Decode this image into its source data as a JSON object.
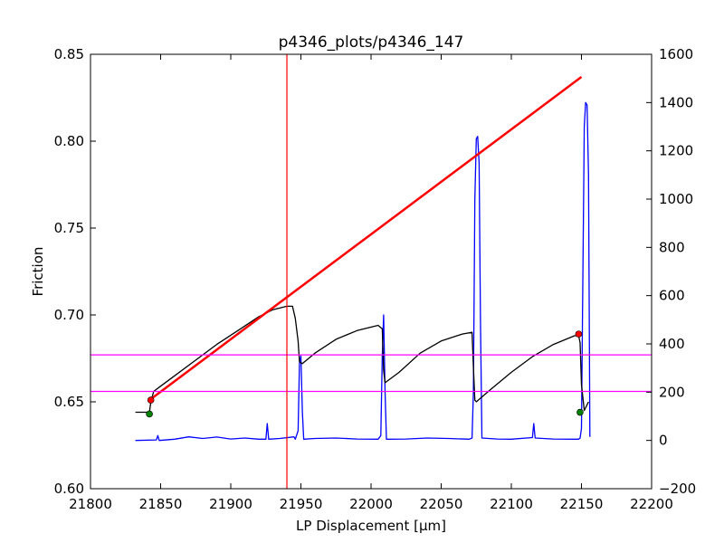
{
  "chart_data": {
    "type": "line",
    "title": "p4346_plots/p4346_147",
    "xlabel": "LP Displacement [μm]",
    "ylabel": "Friction",
    "xlim": [
      21800,
      22200
    ],
    "ylim_left": [
      0.6,
      0.85
    ],
    "ylim_right": [
      -200,
      1600
    ],
    "x_ticks": [
      "21800",
      "21850",
      "21900",
      "21950",
      "22000",
      "22050",
      "22100",
      "22150",
      "22200"
    ],
    "y_ticks_left": [
      "0.60",
      "0.65",
      "0.70",
      "0.75",
      "0.80",
      "0.85"
    ],
    "y_ticks_right": [
      "−200",
      "0",
      "200",
      "400",
      "600",
      "800",
      "1000",
      "1200",
      "1400",
      "1600"
    ],
    "grid": false,
    "series": [
      {
        "axis": "left",
        "color": "#000000",
        "points": [
          [
            21832,
            0.644
          ],
          [
            21842,
            0.644
          ],
          [
            21843,
            0.65
          ],
          [
            21845,
            0.656
          ],
          [
            21850,
            0.659
          ],
          [
            21860,
            0.665
          ],
          [
            21875,
            0.674
          ],
          [
            21890,
            0.683
          ],
          [
            21905,
            0.691
          ],
          [
            21920,
            0.699
          ],
          [
            21930,
            0.703
          ],
          [
            21940,
            0.705
          ],
          [
            21944,
            0.705
          ],
          [
            21946,
            0.698
          ],
          [
            21948,
            0.685
          ],
          [
            21949,
            0.673
          ],
          [
            21951,
            0.672
          ],
          [
            21960,
            0.678
          ],
          [
            21975,
            0.686
          ],
          [
            21990,
            0.691
          ],
          [
            22005,
            0.694
          ],
          [
            22008,
            0.692
          ],
          [
            22009,
            0.668
          ],
          [
            22010,
            0.661
          ],
          [
            22020,
            0.667
          ],
          [
            22035,
            0.678
          ],
          [
            22050,
            0.685
          ],
          [
            22065,
            0.689
          ],
          [
            22072,
            0.69
          ],
          [
            22073,
            0.67
          ],
          [
            22074,
            0.651
          ],
          [
            22075,
            0.65
          ],
          [
            22085,
            0.657
          ],
          [
            22100,
            0.667
          ],
          [
            22115,
            0.676
          ],
          [
            22130,
            0.683
          ],
          [
            22145,
            0.688
          ],
          [
            22148,
            0.688
          ],
          [
            22149,
            0.684
          ],
          [
            22150,
            0.66
          ],
          [
            22152,
            0.645
          ],
          [
            22155,
            0.65
          ]
        ]
      },
      {
        "axis": "right",
        "color": "#0000ff",
        "points": [
          [
            21832,
            0
          ],
          [
            21847,
            2
          ],
          [
            21848,
            20
          ],
          [
            21849,
            0
          ],
          [
            21860,
            5
          ],
          [
            21870,
            15
          ],
          [
            21880,
            8
          ],
          [
            21890,
            14
          ],
          [
            21900,
            6
          ],
          [
            21910,
            10
          ],
          [
            21920,
            5
          ],
          [
            21925,
            5
          ],
          [
            21926,
            70
          ],
          [
            21927,
            5
          ],
          [
            21935,
            8
          ],
          [
            21945,
            15
          ],
          [
            21946,
            5
          ],
          [
            21948,
            40
          ],
          [
            21949,
            320
          ],
          [
            21950,
            350
          ],
          [
            21951,
            120
          ],
          [
            21952,
            5
          ],
          [
            21960,
            8
          ],
          [
            21975,
            10
          ],
          [
            21990,
            6
          ],
          [
            22005,
            5
          ],
          [
            22007,
            20
          ],
          [
            22008,
            350
          ],
          [
            22009,
            520
          ],
          [
            22010,
            200
          ],
          [
            22011,
            5
          ],
          [
            22025,
            6
          ],
          [
            22040,
            10
          ],
          [
            22055,
            8
          ],
          [
            22070,
            5
          ],
          [
            22072,
            10
          ],
          [
            22073,
            200
          ],
          [
            22074,
            1000
          ],
          [
            22075,
            1250
          ],
          [
            22076,
            1260
          ],
          [
            22077,
            1150
          ],
          [
            22078,
            500
          ],
          [
            22079,
            10
          ],
          [
            22090,
            6
          ],
          [
            22100,
            5
          ],
          [
            22115,
            12
          ],
          [
            22116,
            70
          ],
          [
            22117,
            10
          ],
          [
            22130,
            6
          ],
          [
            22145,
            5
          ],
          [
            22148,
            5
          ],
          [
            22149,
            10
          ],
          [
            22150,
            50
          ],
          [
            22152,
            1300
          ],
          [
            22153,
            1400
          ],
          [
            22154,
            1390
          ],
          [
            22155,
            1100
          ],
          [
            22156,
            15
          ]
        ]
      },
      {
        "axis": "left",
        "color": "#ff0000",
        "points": [
          [
            21842,
            0.651
          ],
          [
            22150,
            0.837
          ]
        ]
      }
    ],
    "scatter_points": [
      {
        "x": 21842,
        "y": 0.643,
        "color": "#008000"
      },
      {
        "x": 22149,
        "y": 0.644,
        "color": "#008000"
      },
      {
        "x": 21843,
        "y": 0.651,
        "color": "#ff0000"
      },
      {
        "x": 22148,
        "y": 0.689,
        "color": "#ff0000"
      }
    ],
    "hlines_left": [
      {
        "y": 0.677,
        "color": "#ff00ff"
      },
      {
        "y": 0.656,
        "color": "#ff00ff"
      }
    ],
    "vlines": [
      {
        "x": 21940,
        "color": "#ff0000"
      }
    ]
  }
}
